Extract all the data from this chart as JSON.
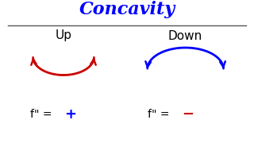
{
  "title": "Concavity",
  "title_color": "#0000ff",
  "title_fontsize": 16,
  "title_style": "italic",
  "title_font": "serif",
  "label_up": "Up",
  "label_down": "Down",
  "label_fontsize": 11,
  "label_color": "#000000",
  "plus_color": "#0000ff",
  "minus_color": "#cc0000",
  "curve_up_color": "#cc0000",
  "curve_down_color": "#0000ff",
  "background_color": "#ffffff",
  "divider_color": "#555555"
}
